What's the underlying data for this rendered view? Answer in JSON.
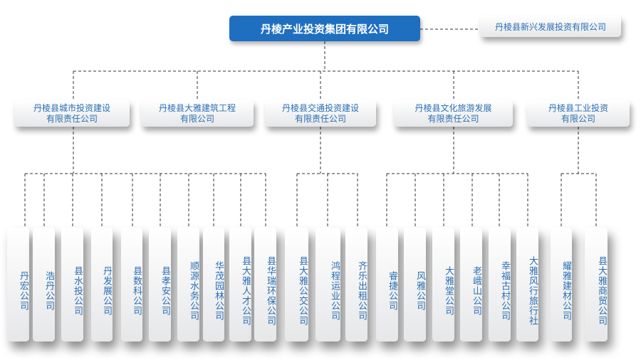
{
  "root": {
    "label": "丹棱产业投资集团有限公司"
  },
  "affiliate": {
    "label": "丹棱县新兴发展投资有限公司"
  },
  "subsidiaries": [
    {
      "line1": "丹棱县城市投资建设",
      "line2": "有限责任公司"
    },
    {
      "line1": "丹棱县大雅建筑工程",
      "line2": "有限公司"
    },
    {
      "line1": "丹棱县交通投资建设",
      "line2": "有限责任公司"
    },
    {
      "line1": "丹棱县文化旅游发展",
      "line2": "有限责任公司"
    },
    {
      "line1": "丹棱县工业投资",
      "line2": "有限公司"
    }
  ],
  "companies": [
    "丹宏公司",
    "浩丹公司",
    "县水投公司",
    "丹发展公司",
    "县数科公司",
    "县孝安公司",
    "顺源水务公司",
    "华茂园林公司",
    "县大雅人才公司",
    "县华瑞环保公司",
    "县大雅公交公司",
    "鸿程运业公司",
    "齐乐出租公司",
    "睿捷公司",
    "风雅公司",
    "大雅堂公司",
    "老峨山公司",
    "幸福古村公司",
    "大雅风行旅行社",
    "耀雅建材公司",
    "县大雅商贸公司"
  ],
  "colors": {
    "primary": "#1f6fc0",
    "text": "#2a6fb5",
    "line": "#333333"
  }
}
